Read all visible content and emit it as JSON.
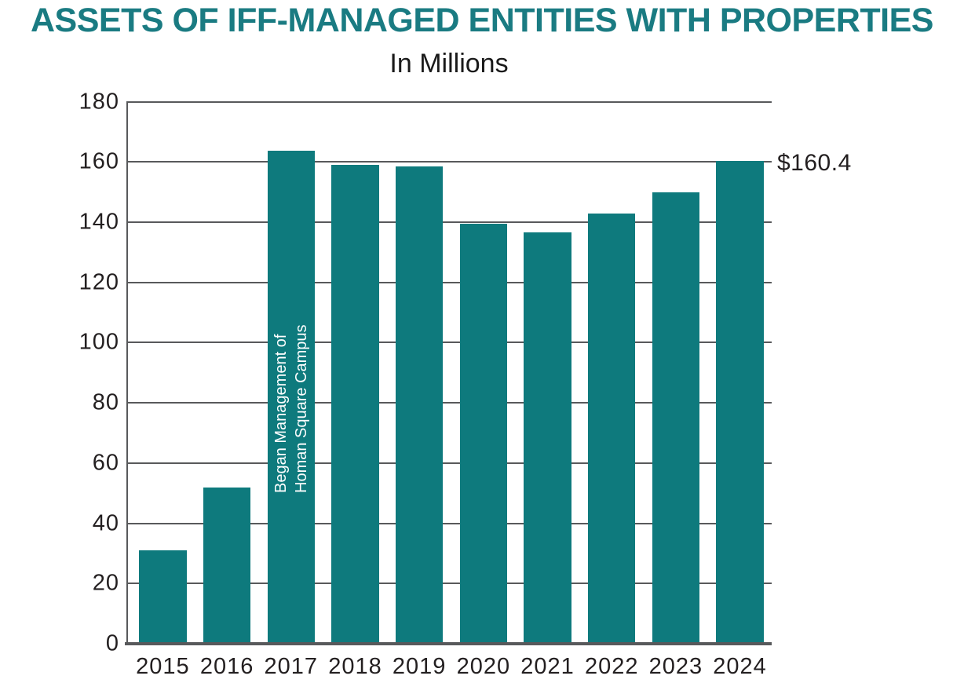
{
  "colors": {
    "bar": "#0e7a7d",
    "title": "#1a7b82",
    "grid": "#58595b",
    "axis": "#58595b",
    "tick_text": "#231f20",
    "annotation_text": "#ffffff"
  },
  "chart_data": {
    "type": "bar",
    "title": "ASSETS OF IFF-MANAGED ENTITIES WITH PROPERTIES",
    "subtitle": "In Millions",
    "xlabel": "",
    "ylabel": "",
    "categories": [
      "2015",
      "2016",
      "2017",
      "2018",
      "2019",
      "2020",
      "2021",
      "2022",
      "2023",
      "2024"
    ],
    "values": [
      31,
      51.8,
      163.6,
      159.1,
      158.5,
      139.5,
      136.7,
      142.9,
      150,
      160.4
    ],
    "ylim": [
      0,
      180
    ],
    "yticks": [
      0,
      20,
      40,
      60,
      80,
      100,
      120,
      140,
      160,
      180
    ],
    "grid": true,
    "legend": null,
    "annotations": [
      {
        "kind": "bar-note",
        "bar_index": 2,
        "lines": [
          "Began Management of",
          "Homan Square Campus"
        ],
        "rotation_deg": -90
      },
      {
        "kind": "value-label",
        "bar_index": 9,
        "text": "$160.4"
      }
    ]
  }
}
